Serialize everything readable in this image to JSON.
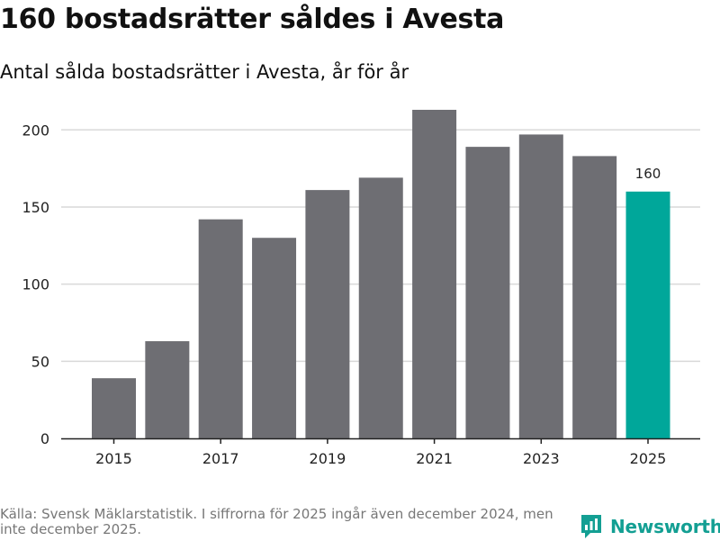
{
  "title": "160 bostadsrätter såldes i Avesta",
  "subtitle": "Antal sålda bostadsrätter i Avesta, år för år",
  "colors": {
    "bar": "#6e6e73",
    "highlight": "#00a79a",
    "grid": "#d9d9d9",
    "axis": "#222222",
    "brand": "#139f93"
  },
  "chart_data": {
    "type": "bar",
    "title": "160 bostadsrätter såldes i Avesta",
    "subtitle": "Antal sålda bostadsrätter i Avesta, år för år",
    "categories": [
      "2015",
      "2016",
      "2017",
      "2018",
      "2019",
      "2020",
      "2021",
      "2022",
      "2023",
      "2024",
      "2025"
    ],
    "values": [
      39,
      63,
      142,
      130,
      161,
      169,
      213,
      189,
      197,
      183,
      160
    ],
    "x_tick_labels": [
      "2015",
      "2017",
      "2019",
      "2021",
      "2023",
      "2025"
    ],
    "y_ticks": [
      0,
      50,
      100,
      150,
      200
    ],
    "ylim": [
      0,
      220
    ],
    "highlight_category": "2025",
    "data_labels": [
      {
        "category": "2025",
        "text": "160"
      }
    ],
    "xlabel": "",
    "ylabel": "",
    "grid": true
  },
  "footer": {
    "source": "Källa: Svensk Mäklarstatistik. I siffrorna för 2025 ingår även december 2024, men inte december 2025.",
    "brand": "Newsworthy",
    "brand_logo_icon": "newsworthy-logo-icon"
  }
}
